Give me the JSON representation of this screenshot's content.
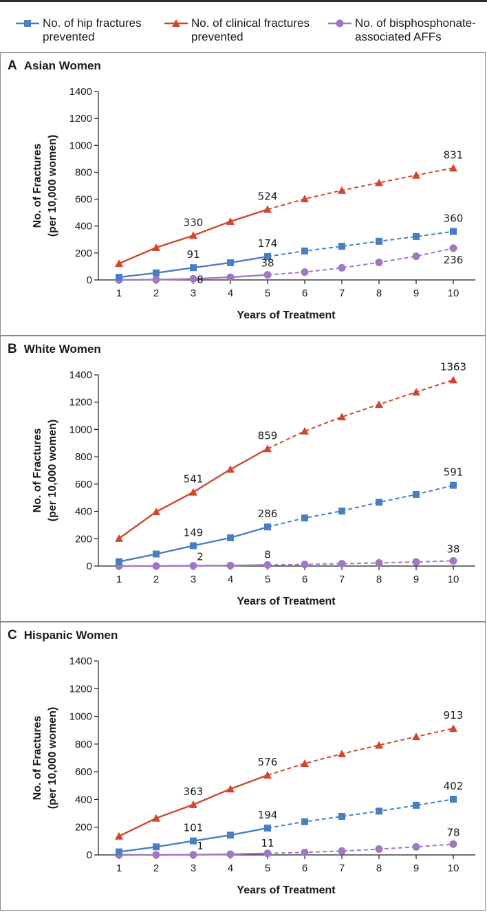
{
  "legend": [
    {
      "name": "No. of hip fractures\nprevented",
      "color": "#4a7ec4",
      "marker": "square"
    },
    {
      "name": "No. of clinical fractures\nprevented",
      "color": "#d0472d",
      "marker": "triangle"
    },
    {
      "name": "No. of bisphosphonate-\nassociated AFFs",
      "color": "#a277c2",
      "marker": "circle"
    }
  ],
  "chart_data": [
    {
      "type": "line",
      "panel_letter": "A",
      "title": "Asian Women",
      "xlabel": "Years of Treatment",
      "ylabel": "No. of Fractures\n(per 10,000 women)",
      "x": [
        1,
        2,
        3,
        4,
        5,
        6,
        7,
        8,
        9,
        10
      ],
      "xlim": [
        1,
        10
      ],
      "ylim": [
        0,
        1400
      ],
      "yticks": [
        0,
        200,
        400,
        600,
        800,
        1000,
        1200,
        1400
      ],
      "solid_through_x": 5,
      "grid": false,
      "series": [
        {
          "name": "No. of hip fractures prevented",
          "values": [
            20,
            52,
            91,
            128,
            174,
            215,
            250,
            287,
            322,
            360
          ],
          "labels": [
            {
              "x": 3,
              "text": "91"
            },
            {
              "x": 5,
              "text": "174"
            },
            {
              "x": 10,
              "text": "360"
            }
          ]
        },
        {
          "name": "No. of clinical fractures prevented",
          "values": [
            122,
            240,
            330,
            434,
            524,
            602,
            665,
            722,
            778,
            831
          ],
          "labels": [
            {
              "x": 3,
              "text": "330"
            },
            {
              "x": 5,
              "text": "524"
            },
            {
              "x": 10,
              "text": "831"
            }
          ]
        },
        {
          "name": "No. of bisphosphonate-associated AFFs",
          "values": [
            0,
            2,
            8,
            20,
            38,
            58,
            90,
            130,
            176,
            236
          ],
          "labels": [
            {
              "x": 3,
              "text": "8"
            },
            {
              "x": 5,
              "text": "38"
            },
            {
              "x": 10,
              "text": "236"
            }
          ]
        }
      ]
    },
    {
      "type": "line",
      "panel_letter": "B",
      "title": "White Women",
      "xlabel": "Years of Treatment",
      "ylabel": "No. of Fractures\n(per 10,000 women)",
      "x": [
        1,
        2,
        3,
        4,
        5,
        6,
        7,
        8,
        9,
        10
      ],
      "xlim": [
        1,
        10
      ],
      "ylim": [
        0,
        1400
      ],
      "yticks": [
        0,
        200,
        400,
        600,
        800,
        1000,
        1200,
        1400
      ],
      "solid_through_x": 5,
      "grid": false,
      "series": [
        {
          "name": "No. of hip fractures prevented",
          "values": [
            32,
            88,
            149,
            207,
            286,
            352,
            403,
            467,
            524,
            591
          ],
          "labels": [
            {
              "x": 3,
              "text": "149"
            },
            {
              "x": 5,
              "text": "286"
            },
            {
              "x": 10,
              "text": "591"
            }
          ]
        },
        {
          "name": "No. of clinical fractures prevented",
          "values": [
            202,
            397,
            541,
            708,
            859,
            988,
            1092,
            1183,
            1274,
            1363
          ],
          "labels": [
            {
              "x": 3,
              "text": "541"
            },
            {
              "x": 5,
              "text": "859"
            },
            {
              "x": 10,
              "text": "1363"
            }
          ]
        },
        {
          "name": "No. of bisphosphonate-associated AFFs",
          "values": [
            0,
            0.5,
            2,
            4,
            8,
            12,
            17,
            23,
            30,
            38
          ],
          "labels": [
            {
              "x": 3,
              "text": "2"
            },
            {
              "x": 5,
              "text": "8"
            },
            {
              "x": 10,
              "text": "38"
            }
          ]
        }
      ]
    },
    {
      "type": "line",
      "panel_letter": "C",
      "title": "Hispanic Women",
      "xlabel": "Years of Treatment",
      "ylabel": "No. of Fractures\n(per 10,000 women)",
      "x": [
        1,
        2,
        3,
        4,
        5,
        6,
        7,
        8,
        9,
        10
      ],
      "xlim": [
        1,
        10
      ],
      "ylim": [
        0,
        1400
      ],
      "yticks": [
        0,
        200,
        400,
        600,
        800,
        1000,
        1200,
        1400
      ],
      "solid_through_x": 5,
      "grid": false,
      "series": [
        {
          "name": "No. of hip fractures prevented",
          "values": [
            22,
            58,
            101,
            143,
            194,
            240,
            278,
            316,
            358,
            402
          ],
          "labels": [
            {
              "x": 3,
              "text": "101"
            },
            {
              "x": 5,
              "text": "194"
            },
            {
              "x": 10,
              "text": "402"
            }
          ]
        },
        {
          "name": "No. of clinical fractures prevented",
          "values": [
            135,
            265,
            363,
            476,
            576,
            660,
            730,
            792,
            853,
            913
          ],
          "labels": [
            {
              "x": 3,
              "text": "363"
            },
            {
              "x": 5,
              "text": "576"
            },
            {
              "x": 10,
              "text": "913"
            }
          ]
        },
        {
          "name": "No. of bisphosphonate-associated AFFs",
          "values": [
            0,
            0.3,
            1,
            5,
            11,
            18,
            28,
            42,
            58,
            78
          ],
          "labels": [
            {
              "x": 3,
              "text": "1"
            },
            {
              "x": 5,
              "text": "11"
            },
            {
              "x": 10,
              "text": "78"
            }
          ]
        }
      ]
    }
  ]
}
